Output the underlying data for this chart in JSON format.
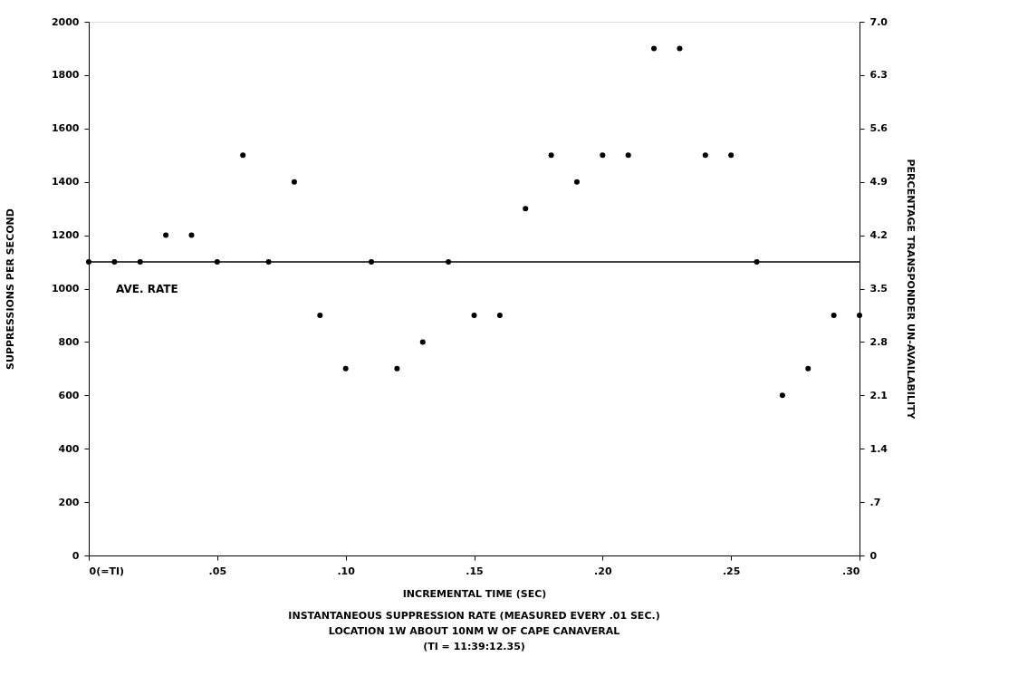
{
  "chart_data": {
    "type": "scatter",
    "xlabel": "INCREMENTAL TIME (SEC)",
    "ylabel": "SUPPRESSIONS PER SECOND",
    "y2label": "PERCENTAGE TRANSPONDER UN-AVAILABILITY",
    "annotations": [
      "INSTANTANEOUS SUPPRESSION RATE (MEASURED EVERY .01 SEC.)",
      "LOCATION  1W ABOUT 10NM W OF CAPE CANAVERAL",
      "(TI = 11:39:12.35)"
    ],
    "x": [
      0,
      0.01,
      0.02,
      0.03,
      0.04,
      0.05,
      0.06,
      0.07,
      0.08,
      0.09,
      0.1,
      0.11,
      0.12,
      0.13,
      0.14,
      0.15,
      0.16,
      0.17,
      0.18,
      0.19,
      0.2,
      0.21,
      0.22,
      0.23,
      0.24,
      0.25,
      0.26,
      0.27,
      0.28,
      0.29,
      0.3
    ],
    "series": [
      {
        "color": "#000000",
        "values": [
          1100,
          1100,
          1100,
          1200,
          1200,
          1100,
          1500,
          1100,
          1400,
          900,
          700,
          1100,
          700,
          800,
          1100,
          900,
          900,
          1300,
          1500,
          1400,
          1500,
          1500,
          1900,
          1900,
          1500,
          1500,
          1100,
          600,
          700,
          900,
          900
        ]
      }
    ],
    "xlim": [
      0,
      0.3
    ],
    "xticks": [
      {
        "value": 0,
        "label": "0(=TI)"
      },
      {
        "value": 0.05,
        "label": ".05"
      },
      {
        "value": 0.1,
        "label": ".10"
      },
      {
        "value": 0.15,
        "label": ".15"
      },
      {
        "value": 0.2,
        "label": ".20"
      },
      {
        "value": 0.25,
        "label": ".25"
      },
      {
        "value": 0.3,
        "label": ".30"
      }
    ],
    "ylim": [
      0,
      2000
    ],
    "yticks": [
      0,
      200,
      400,
      600,
      800,
      1000,
      1200,
      1400,
      1600,
      1800,
      2000
    ],
    "y2lim": [
      0,
      7.0
    ],
    "y2ticks": [
      0,
      {
        "value": 0.7,
        "label": ".7"
      },
      1.4,
      2.1,
      2.8,
      3.5,
      4.2,
      4.9,
      5.6,
      6.3,
      {
        "value": 7.0,
        "label": "7.0"
      }
    ],
    "ref_lines": [
      {
        "axis": "y",
        "value": 1100,
        "label": "AVE. RATE",
        "color": "#000000"
      }
    ],
    "marker": "circle",
    "grid": false
  }
}
